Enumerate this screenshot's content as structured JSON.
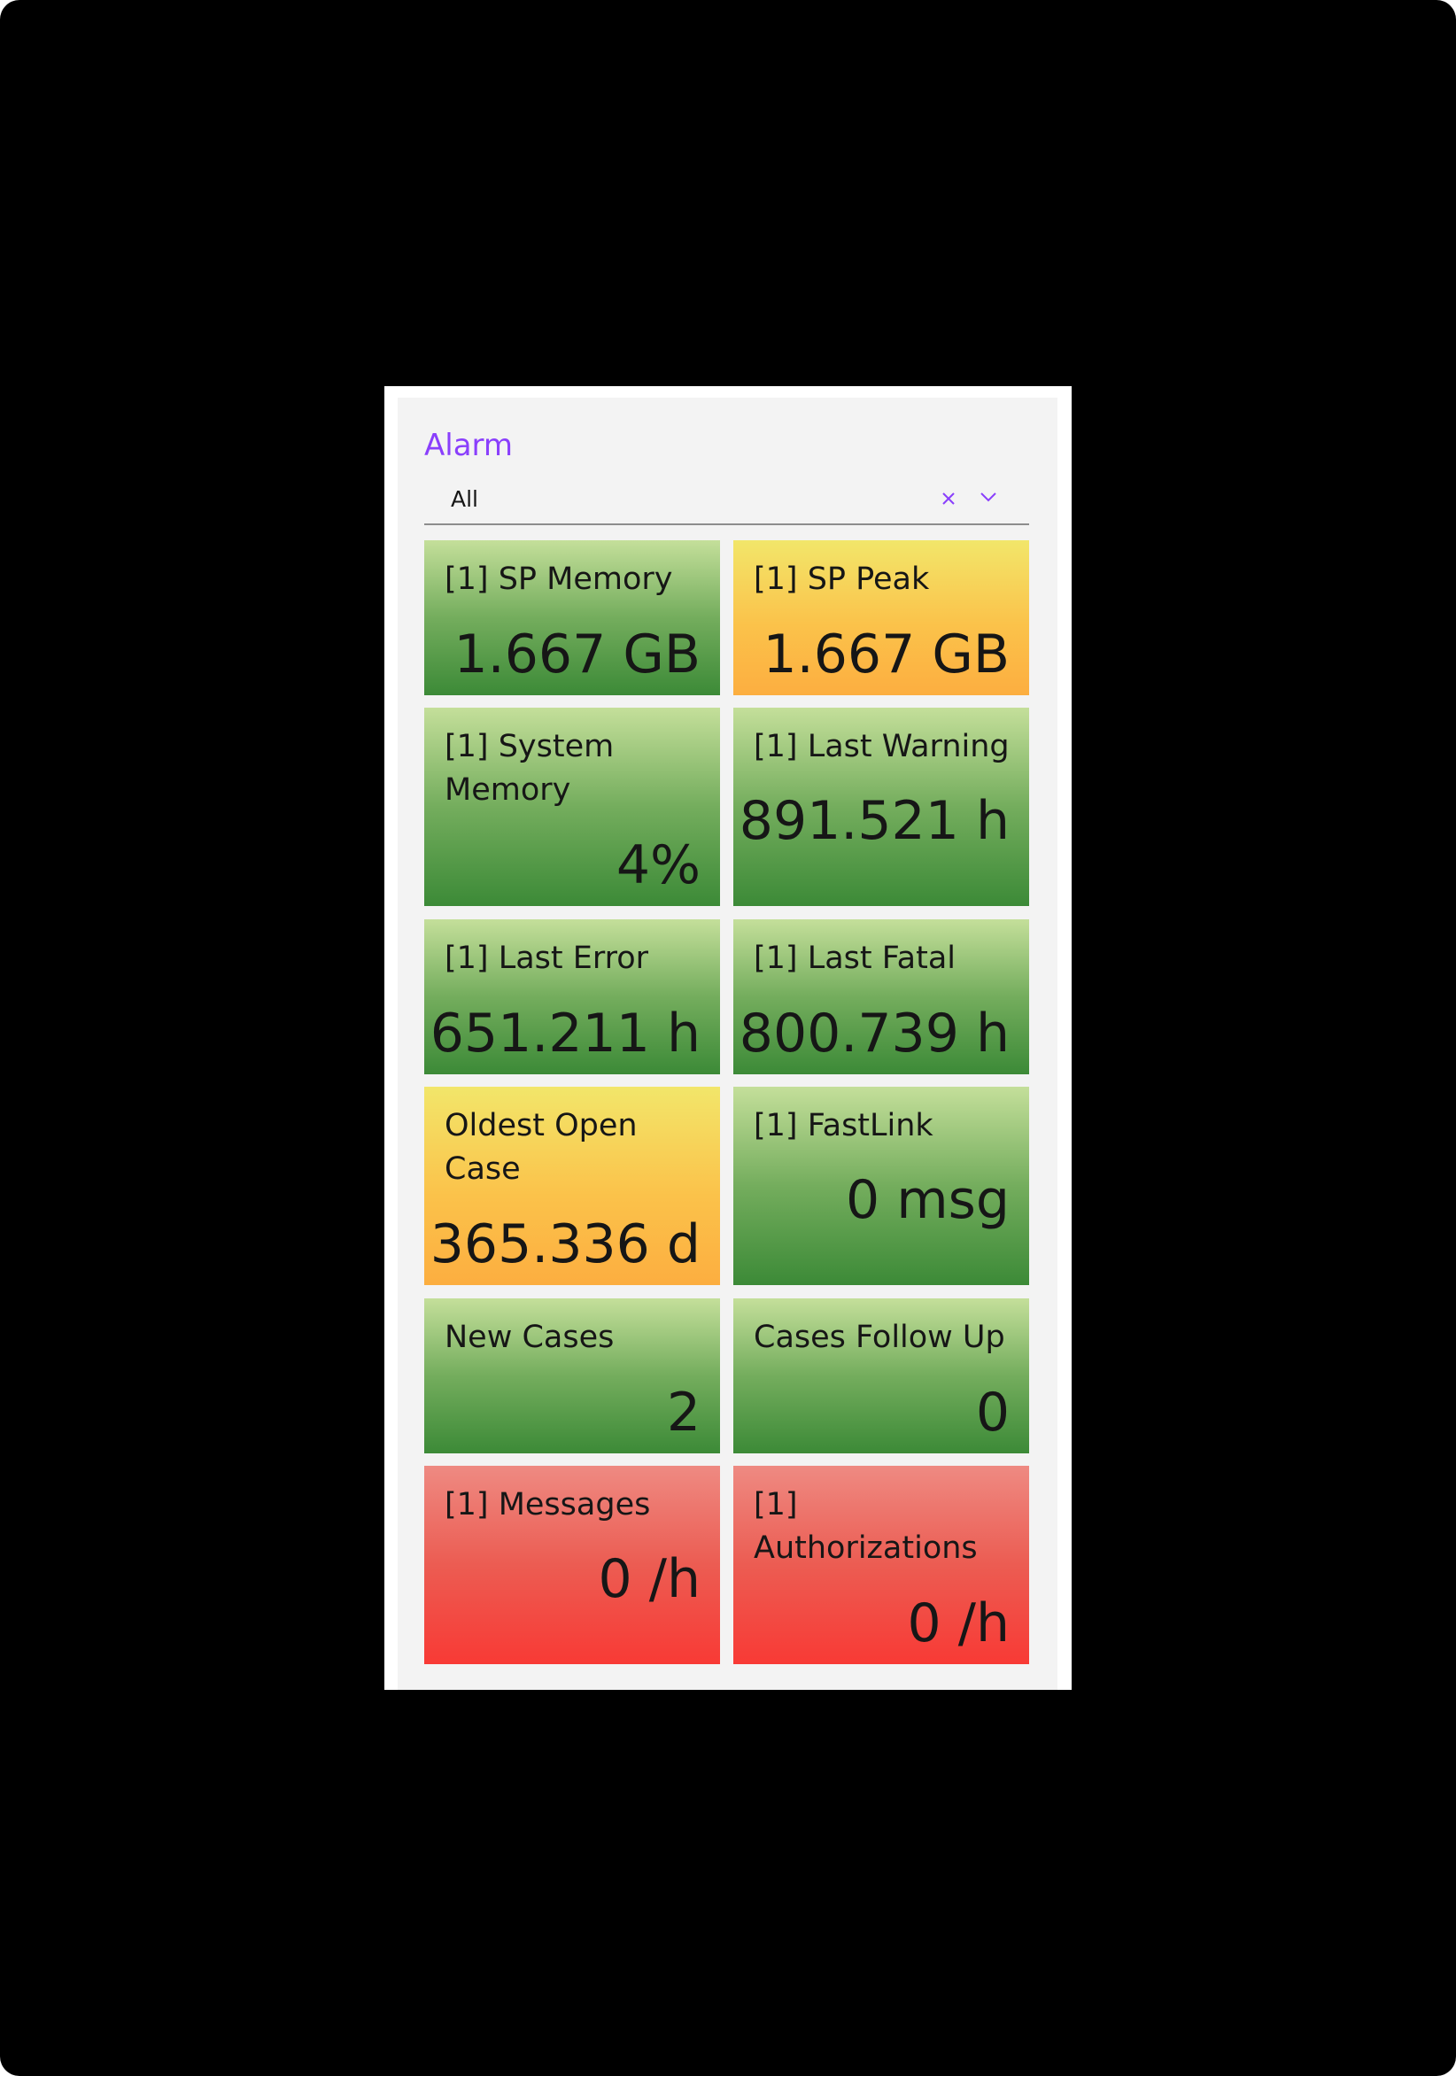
{
  "filter": {
    "label": "Alarm",
    "value": "All",
    "clear_icon": "close-icon",
    "open_icon": "chevron-down-icon"
  },
  "colors": {
    "accent": "#8a3ffc",
    "status_ok": "#3c8a37",
    "status_warning": "#fcae40",
    "status_critical": "#f83a35"
  },
  "tiles": [
    {
      "title": "[1] SP Memory",
      "value": "1.667 GB",
      "status": "green"
    },
    {
      "title": "[1] SP Peak",
      "value": "1.667 GB",
      "status": "yellow"
    },
    {
      "title": "[1] System Memory",
      "value": "4%",
      "status": "green"
    },
    {
      "title": "[1] Last Warning",
      "value": "891.521 h",
      "status": "green"
    },
    {
      "title": "[1] Last Error",
      "value": "651.211 h",
      "status": "green"
    },
    {
      "title": "[1] Last Fatal",
      "value": "800.739 h",
      "status": "green"
    },
    {
      "title": "Oldest Open Case",
      "value": "365.336 d",
      "status": "yellow"
    },
    {
      "title": "[1] FastLink",
      "value": "0 msg",
      "status": "green"
    },
    {
      "title": "New Cases",
      "value": "2",
      "status": "green"
    },
    {
      "title": "Cases Follow Up",
      "value": "0",
      "status": "green"
    },
    {
      "title": "[1] Messages",
      "value": "0 /h",
      "status": "red"
    },
    {
      "title": "[1] Authorizations",
      "value": "0 /h",
      "status": "red"
    }
  ]
}
